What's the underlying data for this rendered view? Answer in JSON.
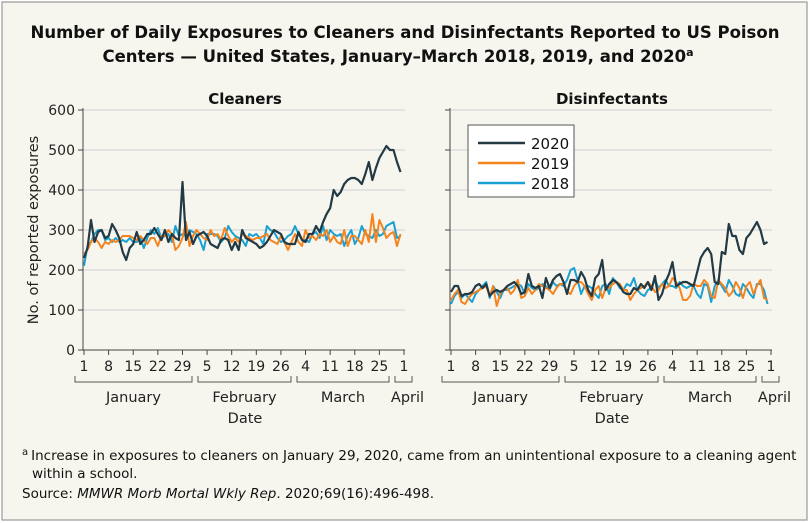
{
  "title": {
    "line1": "Number of Daily Exposures to Cleaners and Disinfectants Reported to US Poison",
    "line2": "Centers — United States, January–March 2018, 2019, and 2020",
    "superscript": "a"
  },
  "footnote": {
    "marker": "a",
    "line1": "Increase in exposures to cleaners on January 29, 2020, came from an unintentional exposure to a cleaning agent",
    "line2": "within a school.",
    "source_label": "Source: ",
    "source_italic": "MMWR Morb Mortal Wkly Rep",
    "source_rest": ". 2020;69(16):496-498."
  },
  "colors": {
    "2020": "#233a45",
    "2019": "#f5841f",
    "2018": "#1aa1d2",
    "grid": "#dcdcdc",
    "background": "#f7f6ee"
  },
  "chart_data": [
    {
      "type": "line",
      "title": "Cleaners",
      "xlabel": "Date",
      "ylabel": "No. of reported exposures",
      "ylim": [
        0,
        600
      ],
      "yticks": [
        "0",
        "100",
        "200",
        "300",
        "400",
        "500",
        "600"
      ],
      "grid": true,
      "x_range": [
        "January 1",
        "April 1"
      ],
      "xtick_labels": [
        "1",
        "8",
        "15",
        "22",
        "29",
        "5",
        "12",
        "19",
        "26",
        "4",
        "11",
        "18",
        "25",
        "1"
      ],
      "months": [
        "January",
        "February",
        "March",
        "April"
      ],
      "series": [
        {
          "name": "2020",
          "values": [
            230,
            255,
            325,
            270,
            295,
            300,
            280,
            285,
            315,
            300,
            280,
            245,
            225,
            255,
            265,
            295,
            265,
            275,
            290,
            290,
            305,
            290,
            275,
            300,
            270,
            290,
            280,
            275,
            420,
            275,
            295,
            265,
            285,
            290,
            295,
            285,
            265,
            260,
            255,
            275,
            280,
            275,
            250,
            270,
            250,
            300,
            280,
            275,
            270,
            265,
            255,
            260,
            270,
            285,
            300,
            295,
            290,
            270,
            265,
            265,
            265,
            295,
            275,
            270,
            290,
            290,
            310,
            295,
            320,
            340,
            355,
            400,
            385,
            395,
            415,
            425,
            430,
            430,
            425,
            415,
            440,
            470,
            425,
            455,
            480,
            495,
            510,
            500,
            500,
            470,
            445
          ]
        },
        {
          "name": "2019",
          "values": [
            240,
            250,
            270,
            280,
            270,
            255,
            270,
            265,
            275,
            270,
            275,
            285,
            285,
            285,
            280,
            275,
            285,
            275,
            265,
            280,
            280,
            260,
            285,
            285,
            300,
            290,
            250,
            260,
            280,
            320,
            260,
            285,
            300,
            290,
            280,
            275,
            300,
            285,
            290,
            275,
            305,
            285,
            270,
            280,
            270,
            290,
            285,
            280,
            275,
            280,
            280,
            285,
            290,
            275,
            270,
            265,
            285,
            270,
            250,
            270,
            290,
            270,
            260,
            300,
            280,
            285,
            275,
            290,
            285,
            300,
            270,
            285,
            270,
            265,
            300,
            260,
            285,
            285,
            275,
            265,
            300,
            270,
            340,
            270,
            325,
            305,
            280,
            290,
            295,
            260,
            290
          ]
        },
        {
          "name": "2018",
          "values": [
            210,
            260,
            270,
            290,
            300,
            300,
            275,
            280,
            270,
            280,
            270,
            275,
            270,
            280,
            270,
            270,
            280,
            255,
            280,
            300,
            290,
            305,
            280,
            285,
            290,
            270,
            310,
            285,
            290,
            285,
            300,
            295,
            290,
            275,
            250,
            290,
            290,
            290,
            285,
            270,
            280,
            310,
            295,
            285,
            280,
            275,
            260,
            290,
            285,
            290,
            280,
            265,
            310,
            300,
            295,
            280,
            270,
            275,
            285,
            290,
            310,
            290,
            275,
            275,
            270,
            290,
            295,
            280,
            310,
            275,
            300,
            290,
            285,
            290,
            260,
            285,
            300,
            265,
            280,
            310,
            290,
            285,
            280,
            300,
            285,
            290,
            310,
            315,
            320,
            280,
            285
          ]
        }
      ]
    },
    {
      "type": "line",
      "title": "Disinfectants",
      "xlabel": "Date",
      "ylim": [
        0,
        600
      ],
      "grid": true,
      "x_range": [
        "January 1",
        "April 1"
      ],
      "xtick_labels": [
        "1",
        "8",
        "15",
        "22",
        "29",
        "5",
        "12",
        "19",
        "26",
        "4",
        "11",
        "18",
        "25",
        "1"
      ],
      "months": [
        "January",
        "February",
        "March",
        "April"
      ],
      "legend": "top-left",
      "series": [
        {
          "name": "2020",
          "values": [
            145,
            160,
            160,
            135,
            140,
            140,
            145,
            160,
            165,
            155,
            165,
            135,
            145,
            150,
            145,
            150,
            160,
            165,
            170,
            160,
            140,
            145,
            190,
            160,
            155,
            160,
            130,
            180,
            155,
            175,
            185,
            190,
            170,
            140,
            175,
            175,
            170,
            195,
            180,
            150,
            135,
            180,
            190,
            225,
            150,
            165,
            175,
            170,
            160,
            145,
            140,
            140,
            155,
            150,
            165,
            155,
            170,
            150,
            185,
            125,
            140,
            170,
            190,
            220,
            160,
            165,
            170,
            170,
            165,
            160,
            195,
            230,
            245,
            255,
            240,
            170,
            165,
            245,
            240,
            315,
            285,
            285,
            250,
            240,
            280,
            290,
            305,
            320,
            300,
            265,
            270
          ]
        },
        {
          "name": "2019",
          "values": [
            125,
            140,
            150,
            120,
            115,
            130,
            140,
            145,
            150,
            155,
            160,
            135,
            160,
            110,
            140,
            150,
            155,
            140,
            150,
            175,
            130,
            135,
            155,
            140,
            150,
            165,
            160,
            155,
            150,
            140,
            155,
            165,
            165,
            145,
            140,
            160,
            170,
            170,
            160,
            140,
            125,
            150,
            160,
            130,
            155,
            155,
            165,
            170,
            165,
            150,
            150,
            125,
            140,
            150,
            155,
            160,
            170,
            160,
            145,
            150,
            165,
            155,
            160,
            180,
            170,
            155,
            125,
            125,
            135,
            165,
            160,
            160,
            175,
            165,
            135,
            130,
            175,
            165,
            155,
            135,
            145,
            170,
            155,
            130,
            160,
            170,
            140,
            160,
            175,
            130,
            125
          ]
        },
        {
          "name": "2018",
          "values": [
            115,
            135,
            145,
            130,
            140,
            130,
            120,
            140,
            150,
            160,
            170,
            130,
            160,
            145,
            130,
            150,
            150,
            155,
            160,
            165,
            160,
            140,
            165,
            155,
            150,
            155,
            165,
            160,
            150,
            170,
            160,
            165,
            160,
            175,
            200,
            205,
            175,
            140,
            160,
            160,
            155,
            140,
            130,
            160,
            165,
            140,
            180,
            170,
            155,
            150,
            165,
            160,
            180,
            150,
            140,
            135,
            150,
            155,
            175,
            155,
            165,
            175,
            160,
            160,
            155,
            170,
            160,
            155,
            160,
            160,
            140,
            130,
            165,
            160,
            120,
            160,
            175,
            160,
            145,
            175,
            160,
            140,
            135,
            165,
            155,
            140,
            130,
            165,
            165,
            150,
            115
          ]
        }
      ]
    }
  ]
}
